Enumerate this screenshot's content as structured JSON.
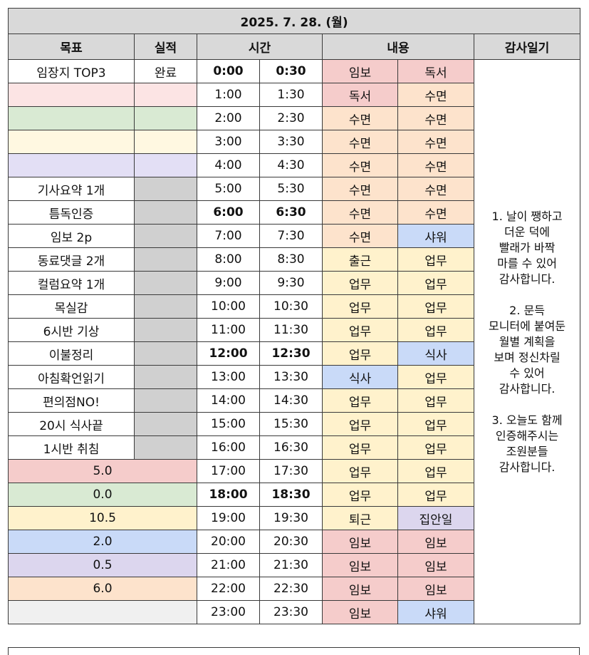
{
  "title": "2025. 7. 28. (월)",
  "headers": {
    "goal": "목표",
    "result": "실적",
    "time": "시간",
    "content": "내용",
    "diary": "감사일기"
  },
  "diary_text": "1. 날이 쨍하고\n더운 덕에\n빨래가 바짝\n마를 수 있어\n감사합니다.\n\n2. 문득\n모니터에 붙여둔\n월별 계획을\n보며 정신차릴\n수 있어\n감사합니다.\n\n3. 오늘도 함께\n인증해주시는\n조원분들\n감사합니다.",
  "colors": {
    "header_bg": "#d9d9d9",
    "pink": "#f5cccb",
    "light_pink": "#fce4e4",
    "green": "#d9ead3",
    "yellow": "#fff2cc",
    "light_yellow": "#fff8e1",
    "lavender": "#e3dff5",
    "purple": "#dcd6ee",
    "blue": "#c9daf8",
    "peach": "#fde3cc",
    "gray": "#d0d0d0",
    "light_gray": "#f0f0f0",
    "white": "#ffffff"
  },
  "rows": [
    {
      "goal": "임장지 TOP3",
      "result": "완료",
      "goal_color": "white",
      "result_color": "white",
      "start": "0:00",
      "end": "0:30",
      "bold": true,
      "a1": "임보",
      "a1c": "pink",
      "a2": "독서",
      "a2c": "pink"
    },
    {
      "goal": "",
      "result": "",
      "goal_color": "light_pink",
      "result_color": "light_pink",
      "start": "1:00",
      "end": "1:30",
      "bold": false,
      "a1": "독서",
      "a1c": "pink",
      "a2": "수면",
      "a2c": "peach"
    },
    {
      "goal": "",
      "result": "",
      "goal_color": "green",
      "result_color": "green",
      "start": "2:00",
      "end": "2:30",
      "bold": false,
      "a1": "수면",
      "a1c": "peach",
      "a2": "수면",
      "a2c": "peach"
    },
    {
      "goal": "",
      "result": "",
      "goal_color": "light_yellow",
      "result_color": "light_yellow",
      "start": "3:00",
      "end": "3:30",
      "bold": false,
      "a1": "수면",
      "a1c": "peach",
      "a2": "수면",
      "a2c": "peach"
    },
    {
      "goal": "",
      "result": "",
      "goal_color": "lavender",
      "result_color": "lavender",
      "start": "4:00",
      "end": "4:30",
      "bold": false,
      "a1": "수면",
      "a1c": "peach",
      "a2": "수면",
      "a2c": "peach"
    },
    {
      "goal": "기사요약 1개",
      "result": "",
      "goal_color": "white",
      "result_color": "gray",
      "start": "5:00",
      "end": "5:30",
      "bold": false,
      "a1": "수면",
      "a1c": "peach",
      "a2": "수면",
      "a2c": "peach"
    },
    {
      "goal": "틈독인증",
      "result": "",
      "goal_color": "white",
      "result_color": "gray",
      "start": "6:00",
      "end": "6:30",
      "bold": true,
      "a1": "수면",
      "a1c": "peach",
      "a2": "수면",
      "a2c": "peach"
    },
    {
      "goal": "임보 2p",
      "result": "",
      "goal_color": "white",
      "result_color": "gray",
      "start": "7:00",
      "end": "7:30",
      "bold": false,
      "a1": "수면",
      "a1c": "peach",
      "a2": "샤워",
      "a2c": "blue"
    },
    {
      "goal": "동료댓글 2개",
      "result": "",
      "goal_color": "white",
      "result_color": "gray",
      "start": "8:00",
      "end": "8:30",
      "bold": false,
      "a1": "출근",
      "a1c": "yellow",
      "a2": "업무",
      "a2c": "yellow"
    },
    {
      "goal": "컬럼요약 1개",
      "result": "",
      "goal_color": "white",
      "result_color": "gray",
      "start": "9:00",
      "end": "9:30",
      "bold": false,
      "a1": "업무",
      "a1c": "yellow",
      "a2": "업무",
      "a2c": "yellow"
    },
    {
      "goal": "목실감",
      "result": "",
      "goal_color": "white",
      "result_color": "gray",
      "start": "10:00",
      "end": "10:30",
      "bold": false,
      "a1": "업무",
      "a1c": "yellow",
      "a2": "업무",
      "a2c": "yellow"
    },
    {
      "goal": "6시반 기상",
      "result": "",
      "goal_color": "white",
      "result_color": "gray",
      "start": "11:00",
      "end": "11:30",
      "bold": false,
      "a1": "업무",
      "a1c": "yellow",
      "a2": "업무",
      "a2c": "yellow"
    },
    {
      "goal": "이불정리",
      "result": "",
      "goal_color": "white",
      "result_color": "gray",
      "start": "12:00",
      "end": "12:30",
      "bold": true,
      "a1": "업무",
      "a1c": "yellow",
      "a2": "식사",
      "a2c": "blue"
    },
    {
      "goal": "아침확언읽기",
      "result": "",
      "goal_color": "white",
      "result_color": "gray",
      "start": "13:00",
      "end": "13:30",
      "bold": false,
      "a1": "식사",
      "a1c": "blue",
      "a2": "업무",
      "a2c": "yellow"
    },
    {
      "goal": "편의점NO!",
      "result": "",
      "goal_color": "white",
      "result_color": "gray",
      "start": "14:00",
      "end": "14:30",
      "bold": false,
      "a1": "업무",
      "a1c": "yellow",
      "a2": "업무",
      "a2c": "yellow"
    },
    {
      "goal": "20시 식사끝",
      "result": "",
      "goal_color": "white",
      "result_color": "gray",
      "start": "15:00",
      "end": "15:30",
      "bold": false,
      "a1": "업무",
      "a1c": "yellow",
      "a2": "업무",
      "a2c": "yellow"
    },
    {
      "goal": "1시반 취침",
      "result": "",
      "goal_color": "white",
      "result_color": "gray",
      "start": "16:00",
      "end": "16:30",
      "bold": false,
      "a1": "업무",
      "a1c": "yellow",
      "a2": "업무",
      "a2c": "yellow"
    },
    {
      "summary": "5.0",
      "summary_color": "pink",
      "start": "17:00",
      "end": "17:30",
      "bold": false,
      "a1": "업무",
      "a1c": "yellow",
      "a2": "업무",
      "a2c": "yellow"
    },
    {
      "summary": "0.0",
      "summary_color": "green",
      "start": "18:00",
      "end": "18:30",
      "bold": true,
      "a1": "업무",
      "a1c": "yellow",
      "a2": "업무",
      "a2c": "yellow"
    },
    {
      "summary": "10.5",
      "summary_color": "yellow",
      "start": "19:00",
      "end": "19:30",
      "bold": false,
      "a1": "퇴근",
      "a1c": "yellow",
      "a2": "집안일",
      "a2c": "purple"
    },
    {
      "summary": "2.0",
      "summary_color": "blue",
      "start": "20:00",
      "end": "20:30",
      "bold": false,
      "a1": "임보",
      "a1c": "pink",
      "a2": "임보",
      "a2c": "pink"
    },
    {
      "summary": "0.5",
      "summary_color": "purple",
      "start": "21:00",
      "end": "21:30",
      "bold": false,
      "a1": "임보",
      "a1c": "pink",
      "a2": "임보",
      "a2c": "pink"
    },
    {
      "summary": "6.0",
      "summary_color": "peach",
      "start": "22:00",
      "end": "22:30",
      "bold": false,
      "a1": "임보",
      "a1c": "pink",
      "a2": "임보",
      "a2c": "pink"
    },
    {
      "summary": "",
      "summary_color": "light_gray",
      "start": "23:00",
      "end": "23:30",
      "bold": false,
      "a1": "임보",
      "a1c": "pink",
      "a2": "샤워",
      "a2c": "blue"
    }
  ]
}
